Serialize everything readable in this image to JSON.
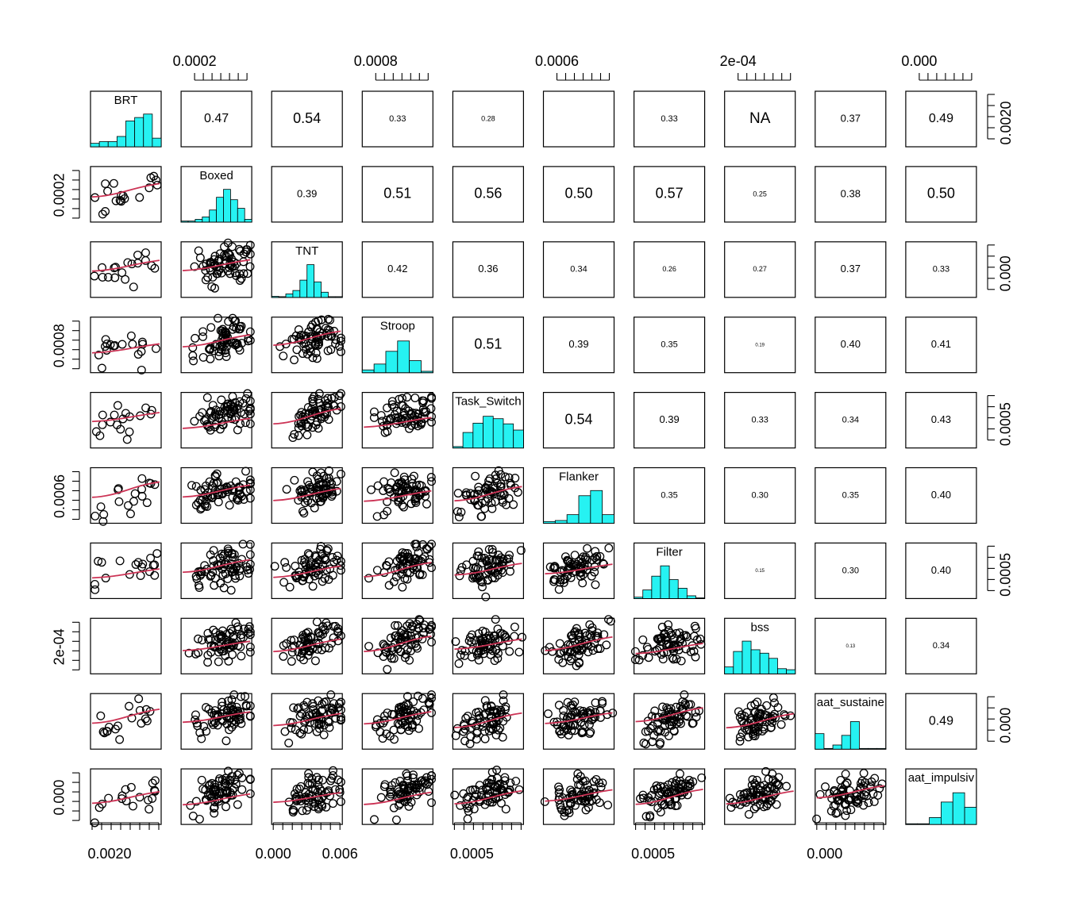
{
  "chart_data": {
    "type": "scatter",
    "subtype": "pairs-matrix",
    "variables": [
      "BRT",
      "Boxed",
      "TNT",
      "Stroop",
      "Task_Switch",
      "Flanker",
      "Filter",
      "bss",
      "aat_sustaine",
      "aat_impulsiv"
    ],
    "correlations": [
      {
        "row": 0,
        "col": 1,
        "value": "0.47"
      },
      {
        "row": 0,
        "col": 2,
        "value": "0.54"
      },
      {
        "row": 0,
        "col": 3,
        "value": "0.33"
      },
      {
        "row": 0,
        "col": 4,
        "value": "0.28"
      },
      {
        "row": 0,
        "col": 5,
        "value": ""
      },
      {
        "row": 0,
        "col": 6,
        "value": "0.33"
      },
      {
        "row": 0,
        "col": 7,
        "value": "NA"
      },
      {
        "row": 0,
        "col": 8,
        "value": "0.37"
      },
      {
        "row": 0,
        "col": 9,
        "value": "0.49"
      },
      {
        "row": 1,
        "col": 2,
        "value": "0.39"
      },
      {
        "row": 1,
        "col": 3,
        "value": "0.51"
      },
      {
        "row": 1,
        "col": 4,
        "value": "0.56"
      },
      {
        "row": 1,
        "col": 5,
        "value": "0.50"
      },
      {
        "row": 1,
        "col": 6,
        "value": "0.57"
      },
      {
        "row": 1,
        "col": 7,
        "value": "0.25"
      },
      {
        "row": 1,
        "col": 8,
        "value": "0.38"
      },
      {
        "row": 1,
        "col": 9,
        "value": "0.50"
      },
      {
        "row": 2,
        "col": 3,
        "value": "0.42"
      },
      {
        "row": 2,
        "col": 4,
        "value": "0.36"
      },
      {
        "row": 2,
        "col": 5,
        "value": "0.34"
      },
      {
        "row": 2,
        "col": 6,
        "value": "0.26"
      },
      {
        "row": 2,
        "col": 7,
        "value": "0.27"
      },
      {
        "row": 2,
        "col": 8,
        "value": "0.37"
      },
      {
        "row": 2,
        "col": 9,
        "value": "0.33"
      },
      {
        "row": 3,
        "col": 4,
        "value": "0.51"
      },
      {
        "row": 3,
        "col": 5,
        "value": "0.39"
      },
      {
        "row": 3,
        "col": 6,
        "value": "0.35"
      },
      {
        "row": 3,
        "col": 7,
        "value": "0.19"
      },
      {
        "row": 3,
        "col": 8,
        "value": "0.40"
      },
      {
        "row": 3,
        "col": 9,
        "value": "0.41"
      },
      {
        "row": 4,
        "col": 5,
        "value": "0.54"
      },
      {
        "row": 4,
        "col": 6,
        "value": "0.39"
      },
      {
        "row": 4,
        "col": 7,
        "value": "0.33"
      },
      {
        "row": 4,
        "col": 8,
        "value": "0.34"
      },
      {
        "row": 4,
        "col": 9,
        "value": "0.43"
      },
      {
        "row": 5,
        "col": 6,
        "value": "0.35"
      },
      {
        "row": 5,
        "col": 7,
        "value": "0.30"
      },
      {
        "row": 5,
        "col": 8,
        "value": "0.35"
      },
      {
        "row": 5,
        "col": 9,
        "value": "0.40"
      },
      {
        "row": 6,
        "col": 7,
        "value": "0.15"
      },
      {
        "row": 6,
        "col": 8,
        "value": "0.30"
      },
      {
        "row": 6,
        "col": 9,
        "value": "0.40"
      },
      {
        "row": 7,
        "col": 8,
        "value": "0.13"
      },
      {
        "row": 7,
        "col": 9,
        "value": "0.34"
      },
      {
        "row": 8,
        "col": 9,
        "value": "0.49"
      }
    ],
    "histograms": [
      [
        0.1,
        0.15,
        0.15,
        0.3,
        0.75,
        0.85,
        0.95,
        0.25
      ],
      [
        0.03,
        0.03,
        0.08,
        0.15,
        0.35,
        0.72,
        0.95,
        0.65,
        0.4,
        0.08
      ],
      [
        0.03,
        0.02,
        0.1,
        0.2,
        0.5,
        0.95,
        0.45,
        0.15,
        0.02,
        0.02
      ],
      [
        0.08,
        0.25,
        0.62,
        0.92,
        0.35,
        0.04
      ],
      [
        0.04,
        0.45,
        0.72,
        0.92,
        0.85,
        0.7,
        0.52
      ],
      [
        0.05,
        0.08,
        0.25,
        0.8,
        0.95,
        0.25
      ],
      [
        0.04,
        0.25,
        0.65,
        0.95,
        0.55,
        0.3,
        0.08,
        0.02
      ],
      [
        0.2,
        0.65,
        0.95,
        0.7,
        0.6,
        0.45,
        0.15,
        0.12
      ],
      [
        0.45,
        0.02,
        0.12,
        0.4,
        0.8,
        0.02,
        0.02,
        0.02
      ],
      [
        0.02,
        0.02,
        0.2,
        0.65,
        0.92,
        0.5
      ]
    ],
    "top_axis_ticks": [
      {
        "col": 1,
        "label": "0.0002"
      },
      {
        "col": 3,
        "label": "0.0008"
      },
      {
        "col": 5,
        "label": "0.0006"
      },
      {
        "col": 7,
        "label": "2e-04"
      },
      {
        "col": 9,
        "label": "0.000"
      }
    ],
    "bottom_axis_ticks": [
      {
        "col": 0,
        "label": "0.0020"
      },
      {
        "col": 2,
        "labels": [
          "0.000",
          "0.006"
        ]
      },
      {
        "col": 4,
        "label": "0.0005"
      },
      {
        "col": 6,
        "label": "0.0005"
      },
      {
        "col": 8,
        "label": "0.000"
      }
    ],
    "left_axis_ticks": [
      {
        "row": 1,
        "label": "0.0002"
      },
      {
        "row": 3,
        "label": "0.0008"
      },
      {
        "row": 5,
        "label": "0.0006"
      },
      {
        "row": 7,
        "label": "2e-04"
      },
      {
        "row": 9,
        "label": "0.000"
      }
    ],
    "right_axis_ticks": [
      {
        "row": 0,
        "label": "0.0020"
      },
      {
        "row": 2,
        "label": "0.000"
      },
      {
        "row": 4,
        "label": "0.0005"
      },
      {
        "row": 6,
        "label": "0.0005"
      },
      {
        "row": 8,
        "label": "0.000"
      }
    ],
    "colors": {
      "histogram_fill": "#26f2f2",
      "smoother": "#cc3355",
      "points": "#000000",
      "frame": "#000000"
    }
  }
}
